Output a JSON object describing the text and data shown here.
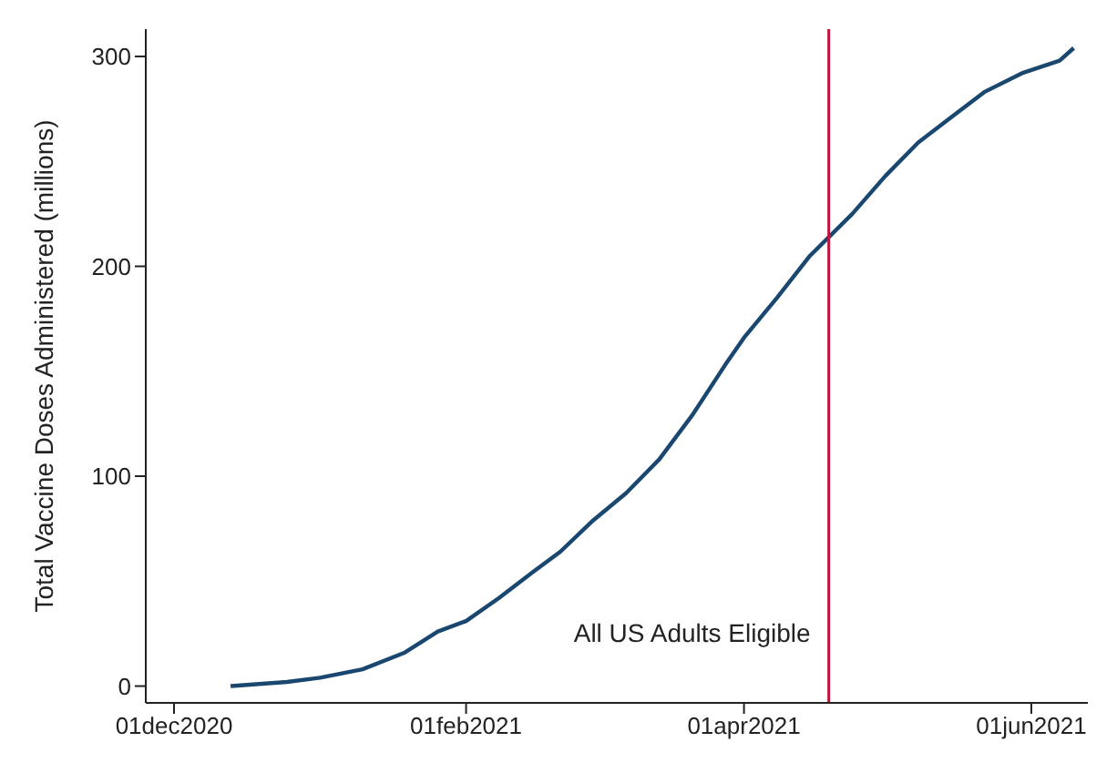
{
  "chart_data": {
    "type": "line",
    "ylabel": "Total Vaccine Doses Administered (millions)",
    "x": [
      "2020-12-13",
      "2020-12-25",
      "2021-01-01",
      "2021-01-10",
      "2021-01-19",
      "2021-01-26",
      "2021-02-01",
      "2021-02-08",
      "2021-02-15",
      "2021-02-21",
      "2021-02-28",
      "2021-03-07",
      "2021-03-14",
      "2021-03-21",
      "2021-03-28",
      "2021-04-01",
      "2021-04-08",
      "2021-04-15",
      "2021-04-24",
      "2021-05-01",
      "2021-05-08",
      "2021-05-15",
      "2021-05-22",
      "2021-05-30",
      "2021-06-07",
      "2021-06-10"
    ],
    "series": [
      {
        "color": "#1a476f",
        "values": [
          0,
          2,
          4,
          8,
          16,
          26,
          31,
          42,
          54,
          64,
          79,
          92,
          108,
          129,
          153,
          166,
          185,
          205,
          225,
          243,
          259,
          271,
          283,
          292,
          298,
          304
        ]
      }
    ],
    "xlim": [
      "2020-11-25",
      "2021-06-13"
    ],
    "ylim": [
      -8,
      313
    ],
    "xticks": [
      {
        "value": "2020-12-01",
        "label": "01dec2020"
      },
      {
        "value": "2021-02-01",
        "label": "01feb2021"
      },
      {
        "value": "2021-04-01",
        "label": "01apr2021"
      },
      {
        "value": "2021-06-01",
        "label": "01jun2021"
      }
    ],
    "yticks": [
      0,
      100,
      200,
      300
    ],
    "ref_lines": [
      {
        "axis": "x",
        "value": "2021-04-19",
        "label": "All US Adults Eligible",
        "color": "#c0143c"
      }
    ],
    "marker": "none",
    "line_style": "solid",
    "grid": false,
    "legend": false
  }
}
